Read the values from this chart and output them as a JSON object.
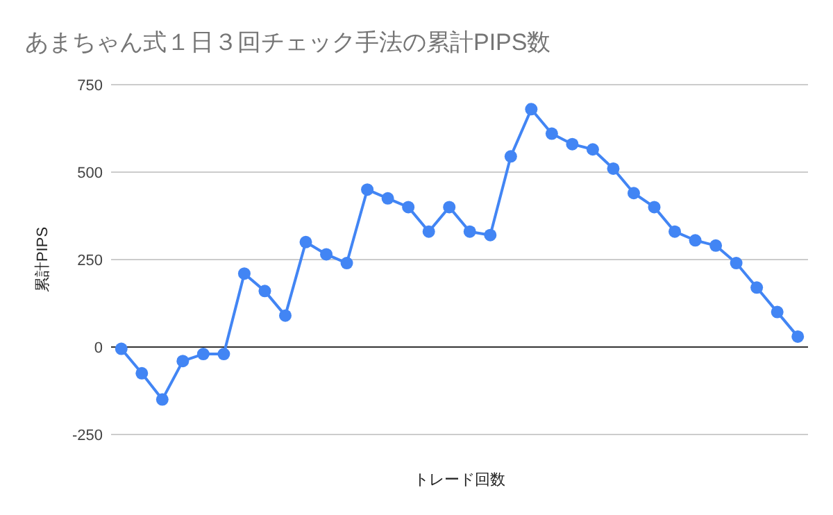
{
  "chart_data": {
    "type": "line",
    "title": "あまちゃん式１日３回チェック手法の累計PIPS数",
    "xlabel": "トレード回数",
    "ylabel": "累計PIPS",
    "categories": [
      null,
      null,
      null,
      null,
      null,
      null,
      null,
      null,
      null,
      null,
      null,
      null,
      null,
      null,
      null,
      null,
      null,
      null,
      null,
      null,
      null,
      null,
      null,
      null,
      null,
      null,
      null,
      null,
      null,
      null,
      null,
      null,
      null,
      null
    ],
    "series": [
      {
        "color": "#4285f4",
        "values": [
          -5,
          -75,
          -150,
          -40,
          -20,
          -20,
          210,
          160,
          90,
          300,
          265,
          240,
          450,
          425,
          400,
          330,
          400,
          330,
          320,
          545,
          680,
          610,
          580,
          565,
          510,
          440,
          400,
          330,
          305,
          290,
          240,
          170,
          100,
          30
        ]
      }
    ],
    "ylim": [
      -250,
      750
    ],
    "yticks": [
      -250,
      0,
      250,
      500,
      750
    ],
    "grid": "y",
    "marker": "circle",
    "line_style": "solid",
    "tick_labels": "y"
  }
}
